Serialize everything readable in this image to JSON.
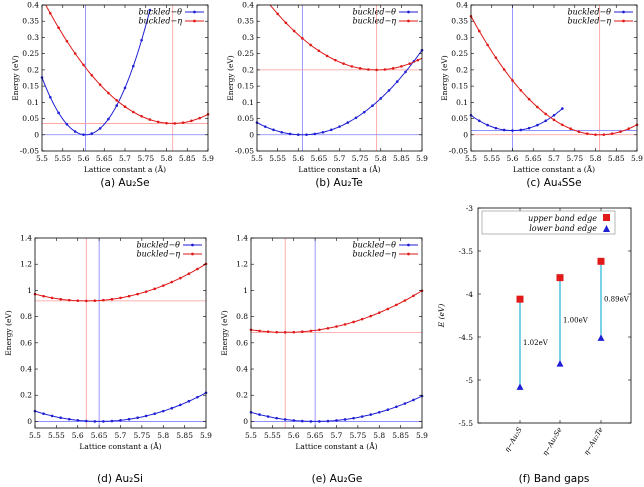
{
  "colors": {
    "blue": "#1f1fd6",
    "red": "#e01919",
    "cyan": "#22b3d8",
    "lineBlue": "#7f7fff",
    "lineRed": "#ff9999"
  },
  "chart_data": [
    {
      "type": "line",
      "caption": "(a) Au₂Se",
      "xlabel": "Lattice constant a (Å)",
      "ylabel": "Energy (eV)",
      "xlim": [
        5.5,
        5.9
      ],
      "ylim": [
        -0.05,
        0.4
      ],
      "xticks": [
        "5.5",
        "5.55",
        "5.6",
        "5.65",
        "5.7",
        "5.75",
        "5.8",
        "5.85",
        "5.9"
      ],
      "yticks": [
        "-0.05",
        "0",
        "0.05",
        "0.1",
        "0.15",
        "0.2",
        "0.25",
        "0.3",
        "0.35",
        "0.4"
      ],
      "legend": [
        "buckled−θ",
        "buckled−η"
      ],
      "series": [
        {
          "name": "buckled−θ",
          "color": "blue",
          "min_x": 5.605,
          "min_y": 0.0,
          "k": 16,
          "x_range": [
            5.5,
            5.76
          ]
        },
        {
          "name": "buckled−η",
          "color": "red",
          "min_x": 5.815,
          "min_y": 0.035,
          "k": 3.9,
          "x_range": [
            5.5,
            5.9
          ]
        }
      ],
      "vlines": [
        {
          "x": 5.605,
          "color": "lineBlue"
        },
        {
          "x": 5.815,
          "color": "lineRed"
        }
      ],
      "hlines": [
        {
          "y": 0.0,
          "color": "lineBlue"
        },
        {
          "y": 0.035,
          "color": "lineRed"
        }
      ]
    },
    {
      "type": "line",
      "caption": "(b) Au₂Te",
      "xlabel": "Lattice constant a (Å)",
      "ylabel": "Energy (eV)",
      "xlim": [
        5.5,
        5.9
      ],
      "ylim": [
        -0.05,
        0.4
      ],
      "xticks": [
        "5.5",
        "5.55",
        "5.6",
        "5.65",
        "5.7",
        "5.75",
        "5.8",
        "5.85",
        "5.9"
      ],
      "yticks": [
        "-0.05",
        "0",
        "0.05",
        "0.1",
        "0.15",
        "0.2",
        "0.25",
        "0.3",
        "0.35",
        "0.4"
      ],
      "legend": [
        "buckled−θ",
        "buckled−η"
      ],
      "series": [
        {
          "name": "buckled−θ",
          "color": "blue",
          "min_x": 5.61,
          "min_y": 0.0,
          "k": 3.1,
          "x_range": [
            5.5,
            5.9
          ]
        },
        {
          "name": "buckled−η",
          "color": "red",
          "min_x": 5.79,
          "min_y": 0.2,
          "k": 3.0,
          "x_range": [
            5.53,
            5.9
          ]
        }
      ],
      "vlines": [
        {
          "x": 5.61,
          "color": "lineBlue"
        },
        {
          "x": 5.79,
          "color": "lineRed"
        }
      ],
      "hlines": [
        {
          "y": 0.0,
          "color": "lineBlue"
        },
        {
          "y": 0.2,
          "color": "lineRed"
        }
      ]
    },
    {
      "type": "line",
      "caption": "(c) Au₄SSe",
      "xlabel": "Lattice constant a (Å)",
      "ylabel": "Energy (eV)",
      "xlim": [
        5.5,
        5.9
      ],
      "ylim": [
        -0.05,
        0.4
      ],
      "xticks": [
        "5.5",
        "5.55",
        "5.6",
        "5.65",
        "5.7",
        "5.75",
        "5.8",
        "5.85",
        "5.9"
      ],
      "yticks": [
        "-0.05",
        "0",
        "0.05",
        "0.1",
        "0.15",
        "0.2",
        "0.25",
        "0.3",
        "0.35",
        "0.4"
      ],
      "legend": [
        "buckled−θ",
        "buckled−η"
      ],
      "series": [
        {
          "name": "buckled−θ",
          "color": "blue",
          "min_x": 5.6,
          "min_y": 0.013,
          "k": 4.7,
          "x_range": [
            5.5,
            5.72
          ]
        },
        {
          "name": "buckled−η",
          "color": "red",
          "min_x": 5.81,
          "min_y": 0.0,
          "k": 3.8,
          "x_range": [
            5.5,
            5.9
          ]
        }
      ],
      "vlines": [
        {
          "x": 5.6,
          "color": "lineBlue"
        },
        {
          "x": 5.81,
          "color": "lineRed"
        }
      ],
      "hlines": [
        {
          "y": 0.013,
          "color": "lineBlue"
        },
        {
          "y": 0.0,
          "color": "lineRed"
        }
      ]
    },
    {
      "type": "line",
      "caption": "(d) Au₂Si",
      "xlabel": "Lattice constant a (Å)",
      "ylabel": "Energy (eV)",
      "xlim": [
        5.5,
        5.9
      ],
      "ylim": [
        -0.05,
        1.4
      ],
      "xticks": [
        "5.5",
        "5.55",
        "5.6",
        "5.65",
        "5.7",
        "5.75",
        "5.8",
        "5.85",
        "5.9"
      ],
      "yticks": [
        "0",
        "0.2",
        "0.4",
        "0.6",
        "0.8",
        "1",
        "1.2",
        "1.4"
      ],
      "legend": [
        "buckled−θ",
        "buckled−η"
      ],
      "series": [
        {
          "name": "buckled−θ",
          "color": "blue",
          "min_x": 5.65,
          "min_y": 0.0,
          "k": 3.5,
          "x_range": [
            5.5,
            5.9
          ]
        },
        {
          "name": "buckled−η",
          "color": "red",
          "min_x": 5.62,
          "min_y": 0.92,
          "k": 3.6,
          "x_range": [
            5.5,
            5.9
          ]
        }
      ],
      "vlines": [
        {
          "x": 5.65,
          "color": "lineBlue"
        },
        {
          "x": 5.62,
          "color": "lineRed"
        }
      ],
      "hlines": [
        {
          "y": 0.0,
          "color": "lineBlue"
        },
        {
          "y": 0.92,
          "color": "lineRed"
        }
      ]
    },
    {
      "type": "line",
      "caption": "(e) Au₂Ge",
      "xlabel": "Lattice constant a (Å)",
      "ylabel": "Energy (eV)",
      "xlim": [
        5.5,
        5.9
      ],
      "ylim": [
        -0.05,
        1.4
      ],
      "xticks": [
        "5.5",
        "5.55",
        "5.6",
        "5.65",
        "5.7",
        "5.75",
        "5.8",
        "5.85",
        "5.9"
      ],
      "yticks": [
        "0",
        "0.2",
        "0.4",
        "0.6",
        "0.8",
        "1",
        "1.2",
        "1.4"
      ],
      "legend": [
        "buckled−θ",
        "buckled−η"
      ],
      "series": [
        {
          "name": "buckled−θ",
          "color": "blue",
          "min_x": 5.65,
          "min_y": 0.0,
          "k": 3.1,
          "x_range": [
            5.5,
            5.9
          ]
        },
        {
          "name": "buckled−η",
          "color": "red",
          "min_x": 5.58,
          "min_y": 0.68,
          "k": 3.1,
          "x_range": [
            5.5,
            5.9
          ]
        }
      ],
      "vlines": [
        {
          "x": 5.65,
          "color": "lineBlue"
        },
        {
          "x": 5.58,
          "color": "lineRed"
        }
      ],
      "hlines": [
        {
          "y": 0.0,
          "color": "lineBlue"
        },
        {
          "y": 0.68,
          "color": "lineRed"
        }
      ]
    },
    {
      "type": "bandgap",
      "caption": "(f) Band gaps",
      "ylabel": "E (eV)",
      "ylim": [
        -5.5,
        -3
      ],
      "yticks": [
        "-3",
        "-3.5",
        "-4",
        "-4.5",
        "-5",
        "-5.5"
      ],
      "categories": [
        "η−Au₂S",
        "η−Au₂Se",
        "η−Au₂Te"
      ],
      "upper": [
        -4.06,
        -3.81,
        -3.62
      ],
      "lower": [
        -5.08,
        -4.81,
        -4.51
      ],
      "gap_labels": [
        "1.02eV",
        "1.00eV",
        "0.89eV"
      ],
      "legend": [
        "upper band edge",
        "lower band edge"
      ]
    }
  ]
}
